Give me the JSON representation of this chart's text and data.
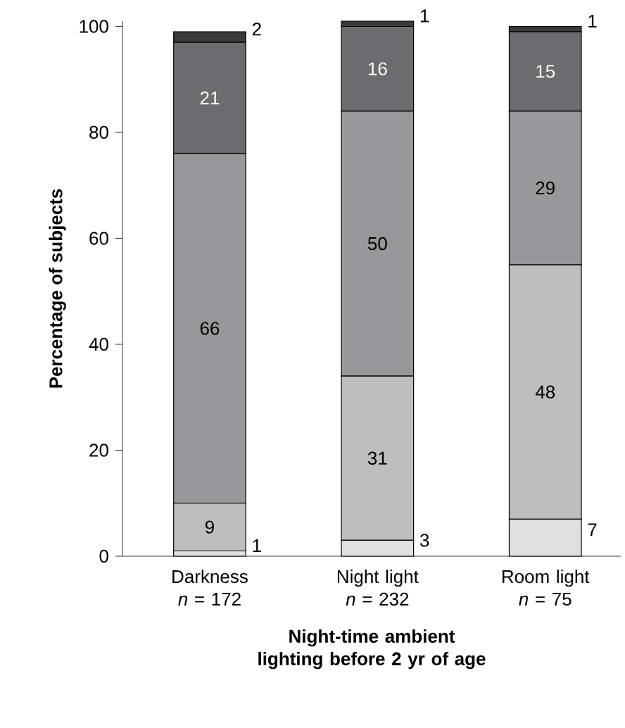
{
  "chart_data": {
    "type": "bar",
    "stacked": true,
    "xlabel": "Night-time ambient lighting before 2 yr of age",
    "ylabel": "Percentage of subjects",
    "categories": [
      "Darkness *n* = 172",
      "Night light *n* = 232",
      "Room light *n* = 75"
    ],
    "series": [
      {
        "color": "#e0e0e0",
        "values": [
          1,
          3,
          7
        ]
      },
      {
        "color": "#bdbec0",
        "values": [
          9,
          31,
          48
        ]
      },
      {
        "color": "#97989b",
        "values": [
          66,
          50,
          29
        ]
      },
      {
        "color": "#6b6c70",
        "values": [
          21,
          16,
          15
        ]
      },
      {
        "color": "#3a3a3c",
        "values": [
          2,
          1,
          1
        ]
      }
    ],
    "ylim": [
      0,
      101
    ],
    "yticks": [
      0,
      20,
      40,
      60,
      80,
      100
    ],
    "data_labels": true
  }
}
